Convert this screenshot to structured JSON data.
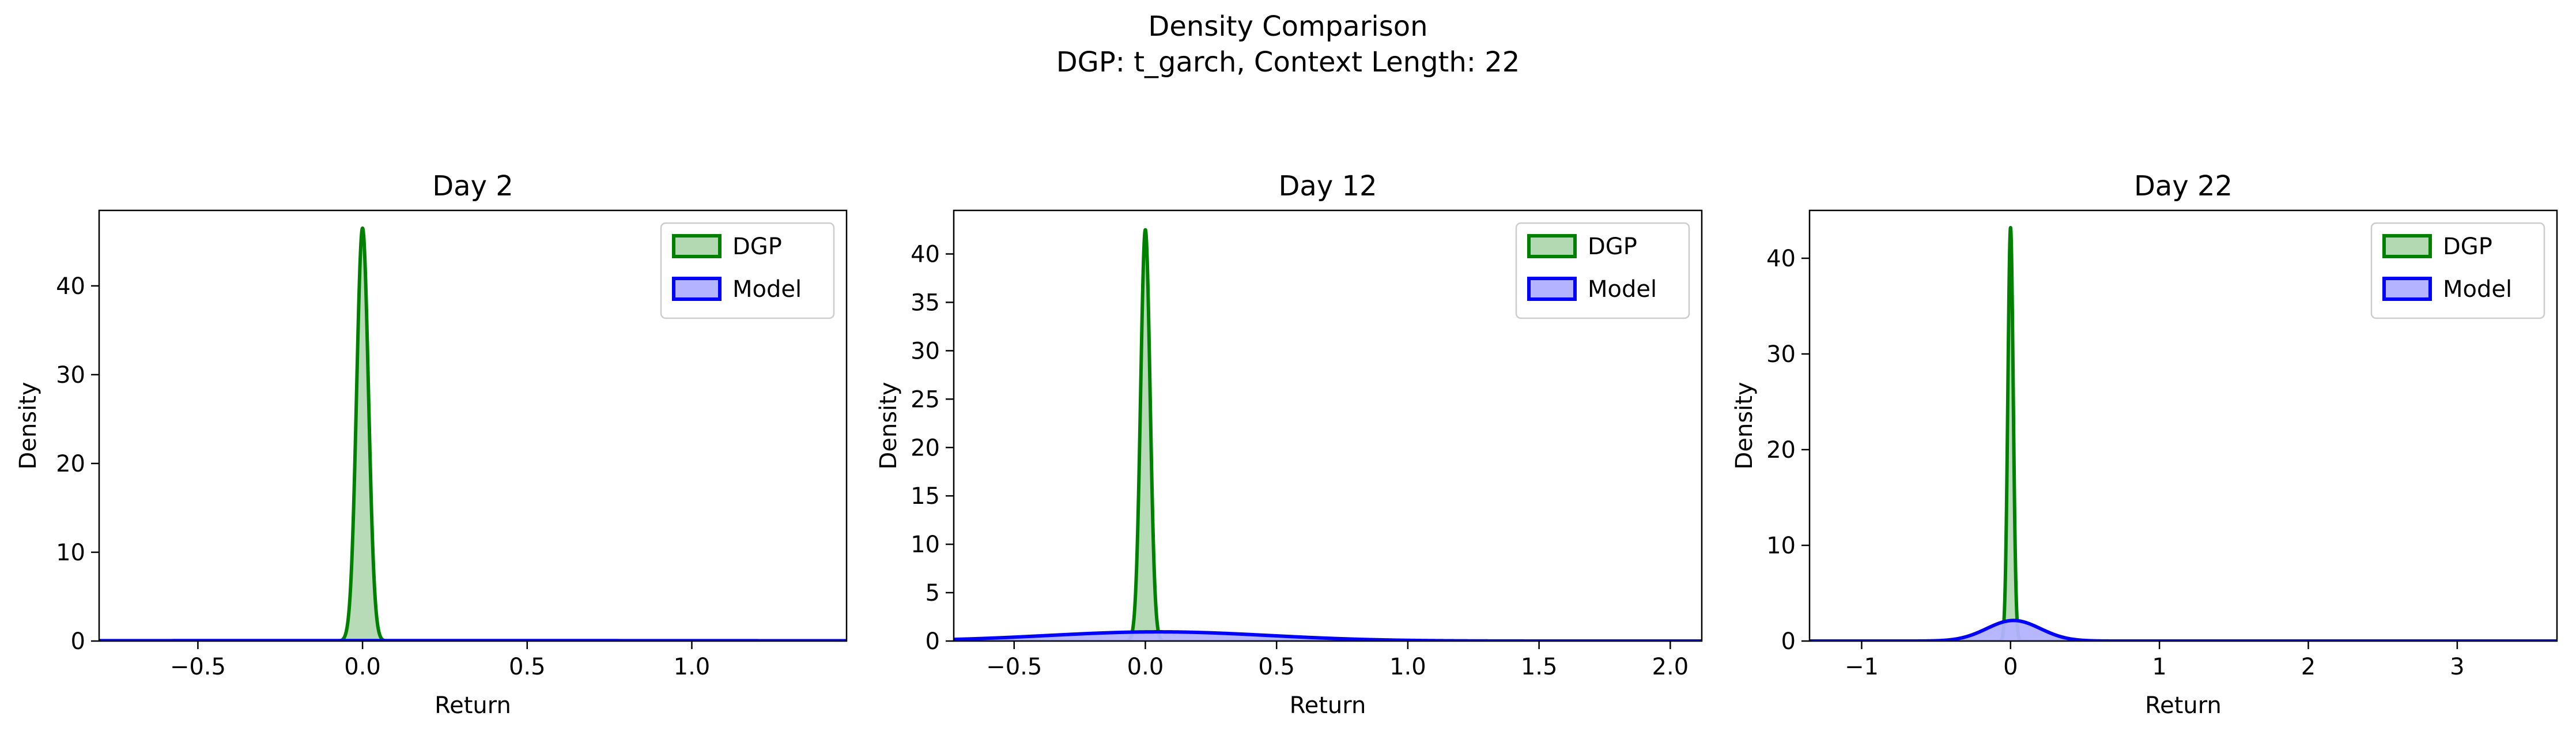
{
  "figure": {
    "title": "Density Comparison",
    "subtitle": "DGP: t_garch, Context Length: 22"
  },
  "colors": {
    "dgp_line": "#008000",
    "dgp_fill": "#b3d9b3",
    "model_line": "#0000ff",
    "model_fill": "#b3b3ff"
  },
  "chart_data": [
    {
      "type": "area",
      "title": "Day 2",
      "xlabel": "Return",
      "ylabel": "Density",
      "xlim": [
        -0.8,
        1.47
      ],
      "ylim": [
        0,
        48.5
      ],
      "xticks": [
        -0.5,
        0.0,
        0.5,
        1.0
      ],
      "xtick_labels": [
        "−0.5",
        "0.0",
        "0.5",
        "1.0"
      ],
      "yticks": [
        0,
        10,
        20,
        30,
        40
      ],
      "ytick_labels": [
        "0",
        "10",
        "20",
        "30",
        "40"
      ],
      "legend": "top-right",
      "series": [
        {
          "name": "DGP",
          "kind": "normal",
          "mu": 0.0,
          "peak": 46.5
        },
        {
          "name": "Model",
          "kind": "normal",
          "mu": 0.1,
          "peak": 0.05
        }
      ]
    },
    {
      "type": "area",
      "title": "Day 12",
      "xlabel": "Return",
      "ylabel": "Density",
      "xlim": [
        -0.73,
        2.12
      ],
      "ylim": [
        0,
        44.5
      ],
      "xticks": [
        -0.5,
        0.0,
        0.5,
        1.0,
        1.5,
        2.0
      ],
      "xtick_labels": [
        "−0.5",
        "0.0",
        "0.5",
        "1.0",
        "1.5",
        "2.0"
      ],
      "yticks": [
        0,
        5,
        10,
        15,
        20,
        25,
        30,
        35,
        40
      ],
      "ytick_labels": [
        "0",
        "5",
        "10",
        "15",
        "20",
        "25",
        "30",
        "35",
        "40"
      ],
      "legend": "top-right",
      "series": [
        {
          "name": "DGP",
          "kind": "normal",
          "mu": 0.0,
          "peak": 42.5
        },
        {
          "name": "Model",
          "kind": "normal",
          "mu": 0.05,
          "peak": 0.95
        }
      ]
    },
    {
      "type": "area",
      "title": "Day 22",
      "xlabel": "Return",
      "ylabel": "Density",
      "xlim": [
        -1.35,
        3.67
      ],
      "ylim": [
        0,
        45
      ],
      "xticks": [
        -1,
        0,
        1,
        2,
        3
      ],
      "xtick_labels": [
        "−1",
        "0",
        "1",
        "2",
        "3"
      ],
      "yticks": [
        0,
        10,
        20,
        30,
        40
      ],
      "ytick_labels": [
        "0",
        "10",
        "20",
        "30",
        "40"
      ],
      "legend": "top-right",
      "series": [
        {
          "name": "DGP",
          "kind": "normal",
          "mu": 0.0,
          "peak": 43.2
        },
        {
          "name": "Model",
          "kind": "normal",
          "mu": 0.02,
          "peak": 2.15
        }
      ]
    }
  ]
}
